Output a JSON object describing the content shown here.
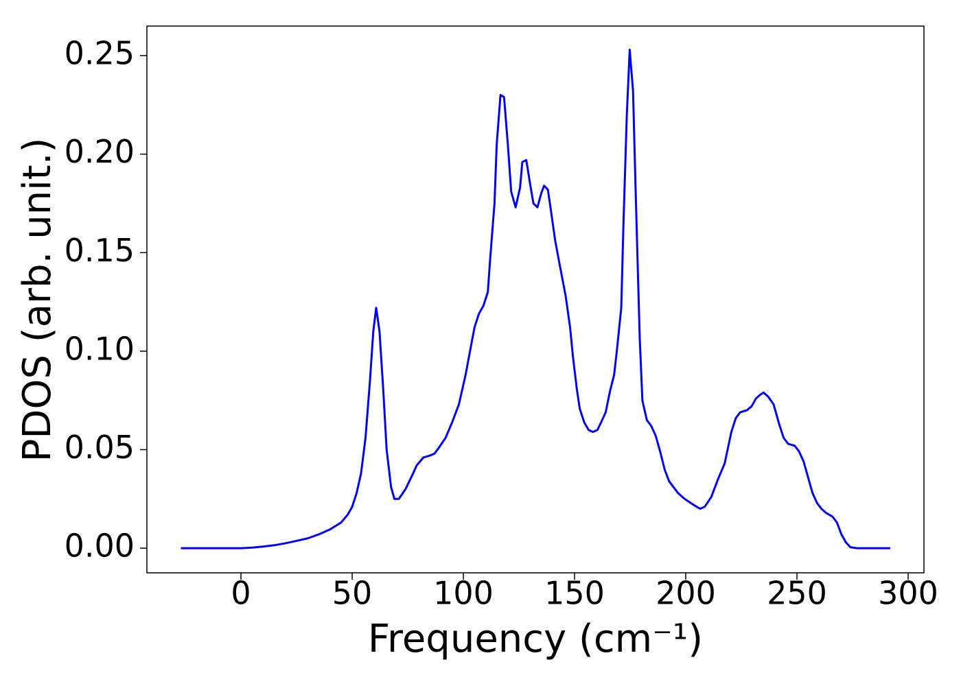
{
  "chart_data": {
    "type": "line",
    "xlabel": "Frequency (cm⁻¹)",
    "ylabel": "PDOS (arb. unit.)",
    "x": [
      -27,
      0,
      5,
      10,
      15,
      20,
      25,
      30,
      35,
      40,
      45,
      48,
      50,
      52,
      54,
      56,
      58,
      59.5,
      60.8,
      62.3,
      64,
      65.5,
      67.5,
      69,
      71,
      74,
      77,
      79,
      82,
      85,
      87,
      89,
      92,
      95,
      98,
      101,
      103,
      105,
      107,
      109,
      111,
      112,
      114,
      115,
      116.7,
      118.3,
      120,
      121.5,
      123.5,
      125.5,
      126.5,
      128.3,
      130,
      131.5,
      133.3,
      135,
      136.3,
      138,
      139.3,
      141.3,
      143.3,
      146,
      148,
      149.3,
      151,
      152.3,
      154.3,
      156.3,
      158.3,
      160.3,
      162,
      164,
      166,
      167.8,
      169,
      171,
      172,
      173.5,
      174.8,
      176.3,
      177.5,
      179.3,
      180.5,
      182.5,
      184.5,
      186.5,
      188.5,
      190.5,
      192.5,
      194.5,
      196.5,
      199.5,
      203.5,
      206.5,
      208.5,
      211.5,
      214.5,
      217.5,
      220.5,
      222.5,
      224.5,
      227.5,
      229.6,
      231.6,
      233.6,
      235,
      237,
      239.5,
      242,
      244,
      246,
      249,
      251,
      253,
      255,
      257,
      259,
      261,
      263,
      266,
      268,
      270,
      272,
      274,
      277,
      292
    ],
    "series": [
      {
        "name": "PDOS",
        "color": "#0000ff",
        "values": [
          0,
          0,
          0.0003,
          0.0008,
          0.0015,
          0.0025,
          0.0037,
          0.005,
          0.007,
          0.0095,
          0.013,
          0.017,
          0.021,
          0.028,
          0.038,
          0.056,
          0.085,
          0.11,
          0.122,
          0.11,
          0.08,
          0.05,
          0.031,
          0.025,
          0.025,
          0.03,
          0.037,
          0.042,
          0.046,
          0.047,
          0.048,
          0.051,
          0.056,
          0.064,
          0.073,
          0.088,
          0.1,
          0.112,
          0.119,
          0.123,
          0.13,
          0.146,
          0.175,
          0.205,
          0.23,
          0.229,
          0.205,
          0.181,
          0.173,
          0.183,
          0.196,
          0.197,
          0.185,
          0.175,
          0.173,
          0.18,
          0.184,
          0.182,
          0.172,
          0.156,
          0.144,
          0.128,
          0.112,
          0.097,
          0.081,
          0.071,
          0.064,
          0.06,
          0.059,
          0.06,
          0.064,
          0.069,
          0.08,
          0.088,
          0.1,
          0.122,
          0.165,
          0.22,
          0.253,
          0.232,
          0.18,
          0.107,
          0.075,
          0.065,
          0.062,
          0.057,
          0.049,
          0.04,
          0.034,
          0.031,
          0.028,
          0.025,
          0.022,
          0.02,
          0.021,
          0.026,
          0.035,
          0.043,
          0.059,
          0.066,
          0.069,
          0.07,
          0.072,
          0.076,
          0.078,
          0.079,
          0.077,
          0.073,
          0.063,
          0.056,
          0.053,
          0.052,
          0.049,
          0.044,
          0.036,
          0.028,
          0.023,
          0.02,
          0.018,
          0.016,
          0.013,
          0.007,
          0.003,
          0.0005,
          0,
          0
        ]
      }
    ],
    "xlim": [
      -42.3,
      307.1
    ],
    "ylim": [
      -0.0125,
      0.265
    ],
    "xticks": [
      0,
      50,
      100,
      150,
      200,
      250,
      300
    ],
    "yticks": [
      {
        "value": 0,
        "label": "0.00"
      },
      0.05,
      {
        "value": 0.1,
        "label": "0.10"
      },
      0.15,
      {
        "value": 0.2,
        "label": "0.20"
      },
      0.25
    ],
    "grid": false
  }
}
